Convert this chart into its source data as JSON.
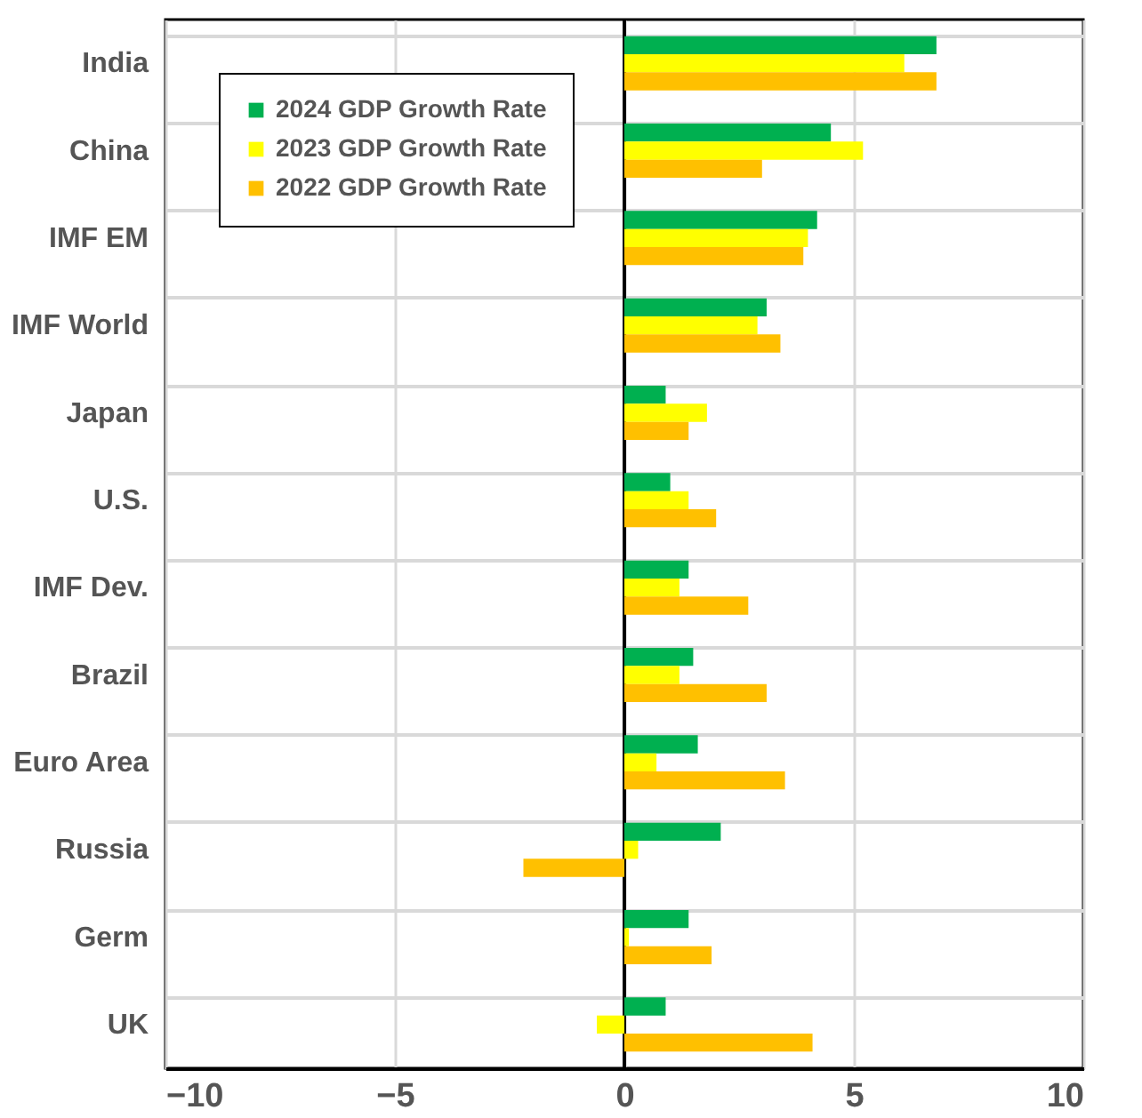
{
  "chart_data": {
    "type": "bar",
    "orientation": "horizontal",
    "categories": [
      "India",
      "China",
      "IMF EM ",
      "IMF World",
      "Japan",
      "U.S.",
      "IMF Dev.",
      "Brazil",
      "Euro Area",
      "Russia",
      "Germ",
      "UK"
    ],
    "series": [
      {
        "name": "2024 GDP Growth Rate",
        "color": "#00b050",
        "values": [
          6.8,
          4.5,
          4.2,
          3.1,
          0.9,
          1.0,
          1.4,
          1.5,
          1.6,
          2.1,
          1.4,
          0.9
        ]
      },
      {
        "name": "2023 GDP Growth Rate",
        "color": "#ffff00",
        "values": [
          6.1,
          5.2,
          4.0,
          2.9,
          1.8,
          1.4,
          1.2,
          1.2,
          0.7,
          0.3,
          0.1,
          -0.6
        ]
      },
      {
        "name": "2022 GDP Growth Rate",
        "color": "#ffc000",
        "values": [
          6.8,
          3.0,
          3.9,
          3.4,
          1.4,
          2.0,
          2.7,
          3.1,
          3.5,
          -2.2,
          1.9,
          4.1
        ]
      }
    ],
    "xlim": [
      -10,
      10
    ],
    "xticks": [
      -10,
      -5,
      0,
      5,
      10
    ],
    "ref_lines": [
      {
        "axis": "x",
        "value": 0,
        "color": "#000000"
      }
    ],
    "grid": true,
    "legend": "top left"
  }
}
